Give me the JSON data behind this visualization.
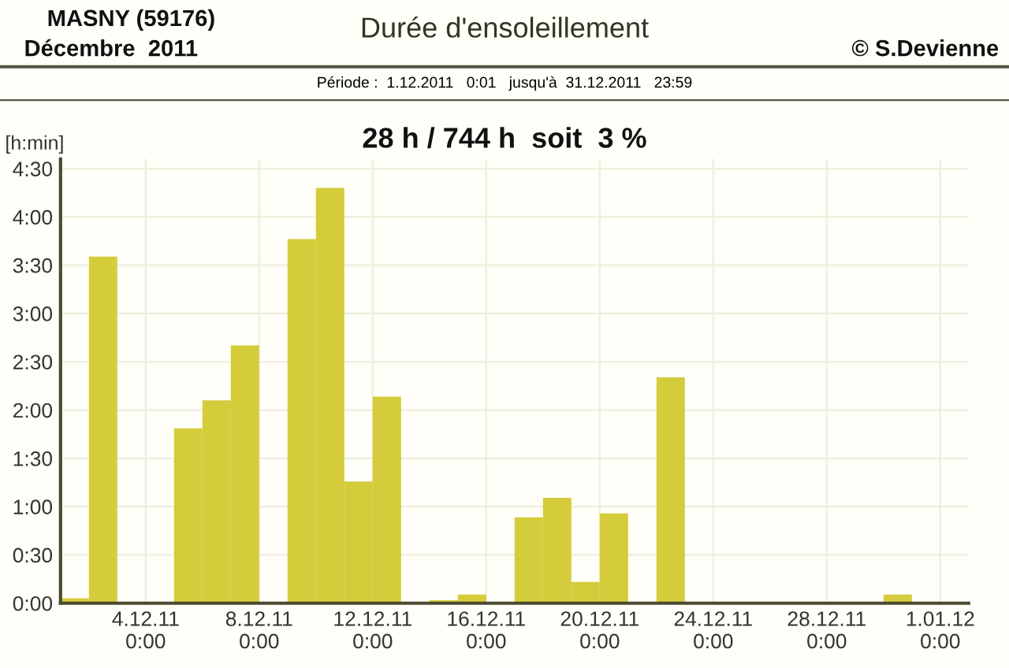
{
  "chart_data": {
    "type": "bar",
    "title": "Durée d'ensoleillement",
    "subtitle": "Période :  1.12.2011   0:01   jusqu'à  31.12.2011   23:59",
    "annotations": [
      "MASNY (59176)",
      "Décembre  2011",
      "© S.Devienne",
      "28 h / 744 h  soit  3 %"
    ],
    "ylabel": "[h:min]",
    "x": [
      "2011-12-01T12:00",
      "2011-12-02T12:00",
      "2011-12-03T12:00",
      "2011-12-04T12:00",
      "2011-12-05T12:00",
      "2011-12-06T12:00",
      "2011-12-07T12:00",
      "2011-12-08T12:00",
      "2011-12-09T12:00",
      "2011-12-10T12:00",
      "2011-12-11T12:00",
      "2011-12-12T12:00",
      "2011-12-13T12:00",
      "2011-12-14T12:00",
      "2011-12-15T12:00",
      "2011-12-16T12:00",
      "2011-12-17T12:00",
      "2011-12-18T12:00",
      "2011-12-19T12:00",
      "2011-12-20T12:00",
      "2011-12-21T12:00",
      "2011-12-22T12:00",
      "2011-12-23T12:00",
      "2011-12-24T12:00",
      "2011-12-25T12:00",
      "2011-12-26T12:00",
      "2011-12-27T12:00",
      "2011-12-28T12:00",
      "2011-12-29T12:00",
      "2011-12-30T12:00",
      "2011-12-31T12:00"
    ],
    "values": [
      0.05,
      3.59,
      0,
      0,
      1.81,
      2.1,
      2.67,
      0,
      3.77,
      4.3,
      1.26,
      2.14,
      0,
      0.03,
      0.09,
      0,
      0.89,
      1.09,
      0.22,
      0.93,
      0,
      2.34,
      0,
      0,
      0,
      0,
      0,
      0,
      0,
      0.09,
      0
    ],
    "color": "#d4cc3a",
    "xlim": [
      "2011-12-01",
      "2012-01-02"
    ],
    "xticks": [
      {
        "value": "2011-12-04",
        "label": "4.12.11\n0:00"
      },
      {
        "value": "2011-12-08",
        "label": "8.12.11\n0:00"
      },
      {
        "value": "2011-12-12",
        "label": "12.12.11\n0:00"
      },
      {
        "value": "2011-12-16",
        "label": "16.12.11\n0:00"
      },
      {
        "value": "2011-12-20",
        "label": "20.12.11\n0:00"
      },
      {
        "value": "2011-12-24",
        "label": "24.12.11\n0:00"
      },
      {
        "value": "2011-12-28",
        "label": "28.12.11\n0:00"
      },
      {
        "value": "2012-01-01",
        "label": "1.01.12\n0:00"
      }
    ],
    "ylim": [
      0,
      4.6
    ],
    "yticks": [
      {
        "value": 0,
        "label": "0:00"
      },
      {
        "value": 0.5,
        "label": "0:30"
      },
      {
        "value": 1,
        "label": "1:00"
      },
      {
        "value": 1.5,
        "label": "1:30"
      },
      {
        "value": 2,
        "label": "2:00"
      },
      {
        "value": 2.5,
        "label": "2:30"
      },
      {
        "value": 3,
        "label": "3:00"
      },
      {
        "value": 3.5,
        "label": "3:30"
      },
      {
        "value": 4,
        "label": "4:00"
      },
      {
        "value": 4.5,
        "label": "4:30"
      }
    ],
    "grid": true
  }
}
